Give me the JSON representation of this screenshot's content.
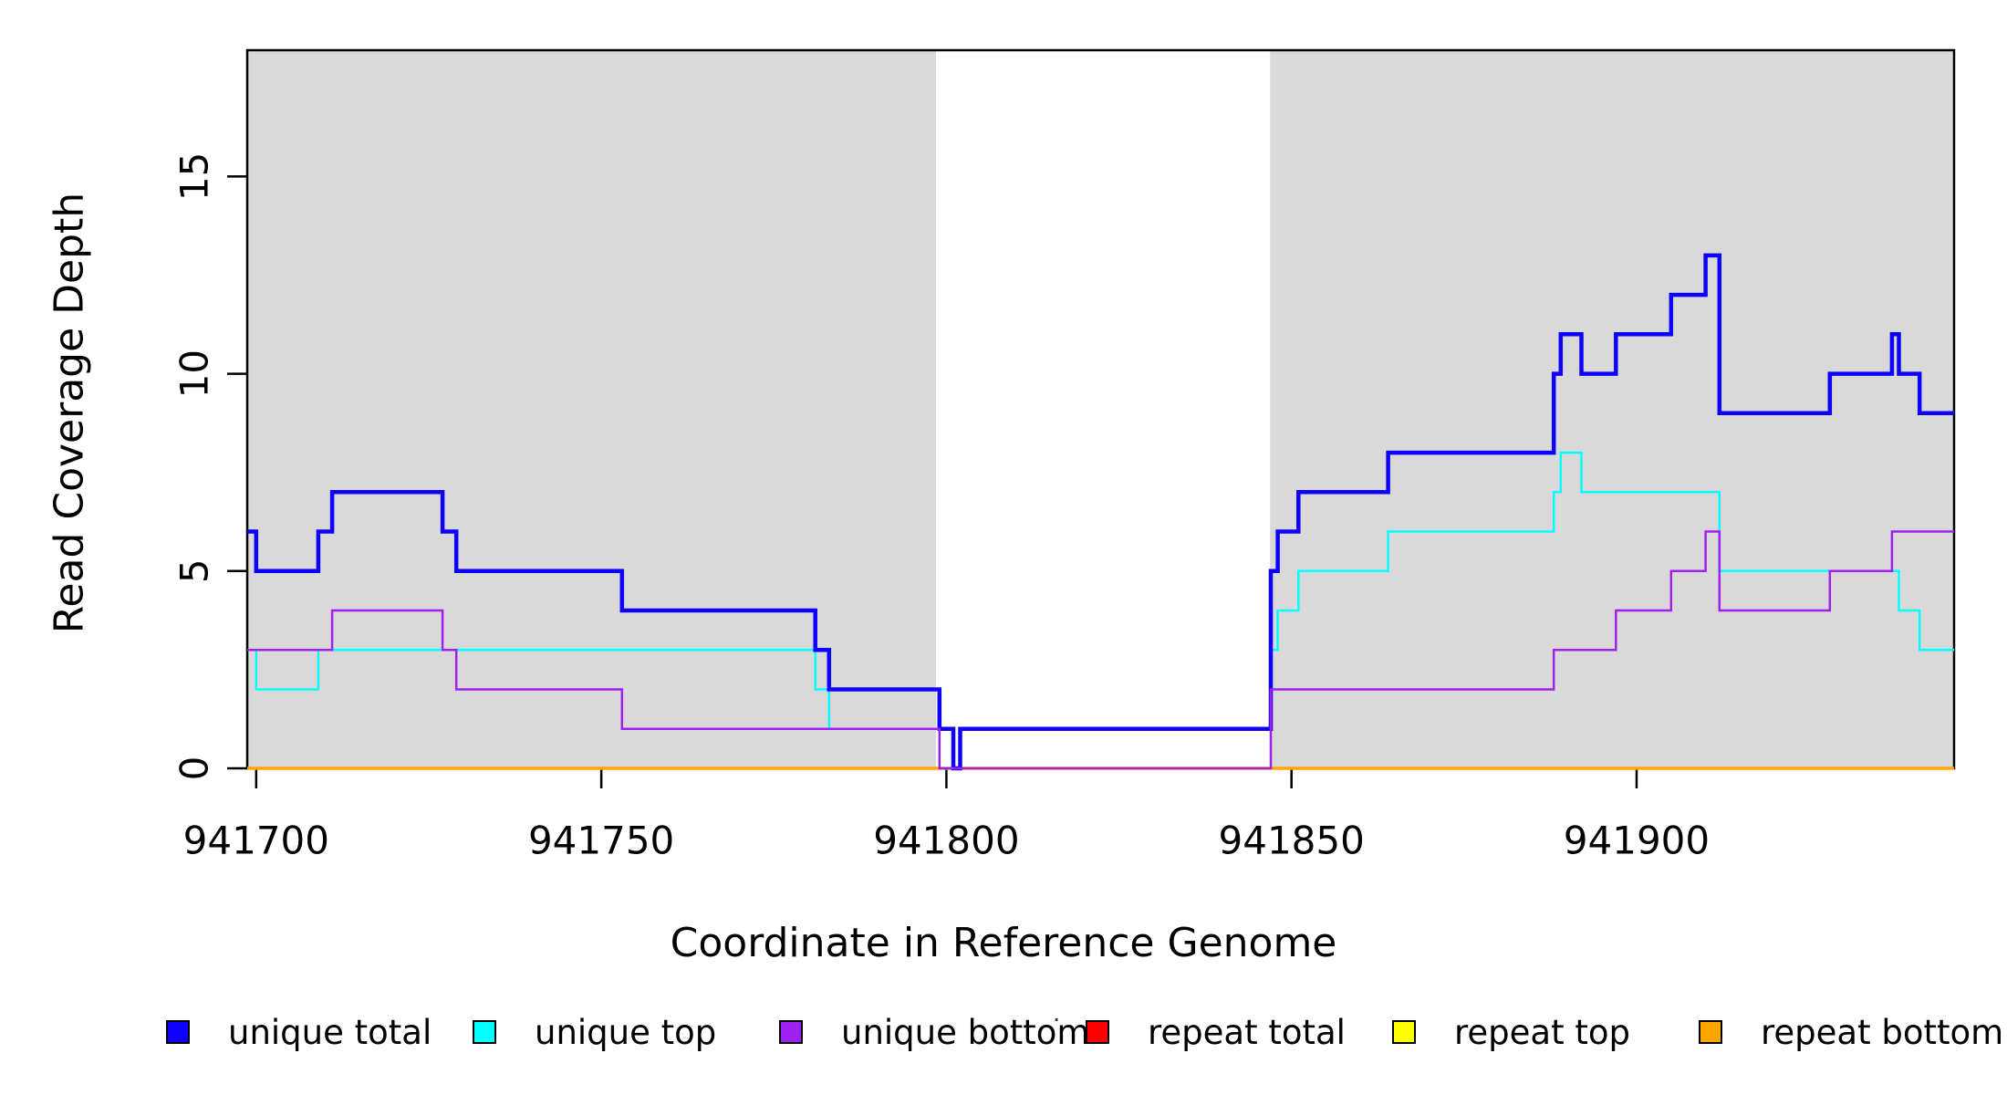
{
  "chart_data": {
    "type": "line",
    "subtype": "step-after",
    "title": "",
    "xlabel": "Coordinate in Reference Genome",
    "ylabel": "Read Coverage Depth",
    "x_range": [
      941698.7,
      941946.0
    ],
    "y_range": [
      0,
      18.2
    ],
    "x_ticks": [
      941700,
      941750,
      941800,
      941850,
      941900
    ],
    "y_ticks": [
      0,
      5,
      10,
      15
    ],
    "grid": false,
    "legend_position": "bottom",
    "band_color": "#d9d9d9",
    "shaded_regions": [
      {
        "name": "left-repeat-masked-band",
        "from": 941698.7,
        "to": 941798.5
      },
      {
        "name": "right-repeat-masked-band",
        "from": 941846.9,
        "to": 941946.0
      }
    ],
    "series": [
      {
        "id": "repeat-total",
        "name": "repeat total",
        "color": "#ff0000",
        "width": 2.5,
        "points": [
          [
            941698.7,
            0
          ]
        ]
      },
      {
        "id": "repeat-top",
        "name": "repeat top",
        "color": "#ffff00",
        "width": 2.5,
        "points": [
          [
            941698.7,
            0
          ]
        ]
      },
      {
        "id": "repeat-bottom",
        "name": "repeat bottom",
        "color": "#ffa500",
        "width": 3.5,
        "points": [
          [
            941698.7,
            0
          ]
        ]
      },
      {
        "id": "unique-top",
        "name": "unique top",
        "color": "#00ffff",
        "width": 2.5,
        "points": [
          [
            941698.7,
            3
          ],
          [
            941700,
            2
          ],
          [
            941709,
            3
          ],
          [
            941781,
            2
          ],
          [
            941783,
            1
          ],
          [
            941799,
            0
          ],
          [
            941802,
            1
          ],
          [
            941847,
            3
          ],
          [
            941848,
            4
          ],
          [
            941851,
            5
          ],
          [
            941864,
            6
          ],
          [
            941888,
            7
          ],
          [
            941889,
            8
          ],
          [
            941892,
            7
          ],
          [
            941912,
            5
          ],
          [
            941938,
            4
          ],
          [
            941941,
            3
          ]
        ]
      },
      {
        "id": "unique-total",
        "name": "unique total",
        "color": "#0d00ff",
        "width": 4.5,
        "points": [
          [
            941698.7,
            6
          ],
          [
            941700,
            5
          ],
          [
            941709,
            6
          ],
          [
            941711,
            7
          ],
          [
            941727,
            6
          ],
          [
            941729,
            5
          ],
          [
            941753,
            4
          ],
          [
            941781,
            3
          ],
          [
            941783,
            2
          ],
          [
            941799,
            1
          ],
          [
            941801,
            0
          ],
          [
            941802,
            1
          ],
          [
            941847,
            5
          ],
          [
            941848,
            6
          ],
          [
            941851,
            7
          ],
          [
            941864,
            8
          ],
          [
            941888,
            10
          ],
          [
            941889,
            11
          ],
          [
            941892,
            10
          ],
          [
            941897,
            11
          ],
          [
            941905,
            12
          ],
          [
            941910,
            13
          ],
          [
            941912,
            9
          ],
          [
            941928,
            10
          ],
          [
            941937,
            11
          ],
          [
            941938,
            10
          ],
          [
            941941,
            9
          ]
        ]
      },
      {
        "id": "unique-bottom",
        "name": "unique bottom",
        "color": "#a020f0",
        "width": 2.5,
        "points": [
          [
            941698.7,
            3
          ],
          [
            941711,
            4
          ],
          [
            941727,
            3
          ],
          [
            941729,
            2
          ],
          [
            941753,
            1
          ],
          [
            941799,
            0
          ],
          [
            941847,
            2
          ],
          [
            941888,
            3
          ],
          [
            941897,
            4
          ],
          [
            941905,
            5
          ],
          [
            941910,
            6
          ],
          [
            941912,
            4
          ],
          [
            941928,
            5
          ],
          [
            941937,
            6
          ]
        ]
      }
    ]
  },
  "axes": {
    "x_label": "Coordinate in Reference Genome",
    "y_label": "Read Coverage Depth"
  },
  "legend": {
    "stray_mark": ".",
    "items": [
      {
        "id": "unique-total",
        "label": "unique total",
        "color": "#0d00ff"
      },
      {
        "id": "unique-top",
        "label": "unique top",
        "color": "#00ffff"
      },
      {
        "id": "unique-bottom",
        "label": "unique bottom",
        "color": "#a020f0"
      },
      {
        "id": "repeat-total",
        "label": "repeat total",
        "color": "#ff0000"
      },
      {
        "id": "repeat-top",
        "label": "repeat top",
        "color": "#ffff00"
      },
      {
        "id": "repeat-bottom",
        "label": "repeat bottom",
        "color": "#ffa500"
      }
    ]
  }
}
